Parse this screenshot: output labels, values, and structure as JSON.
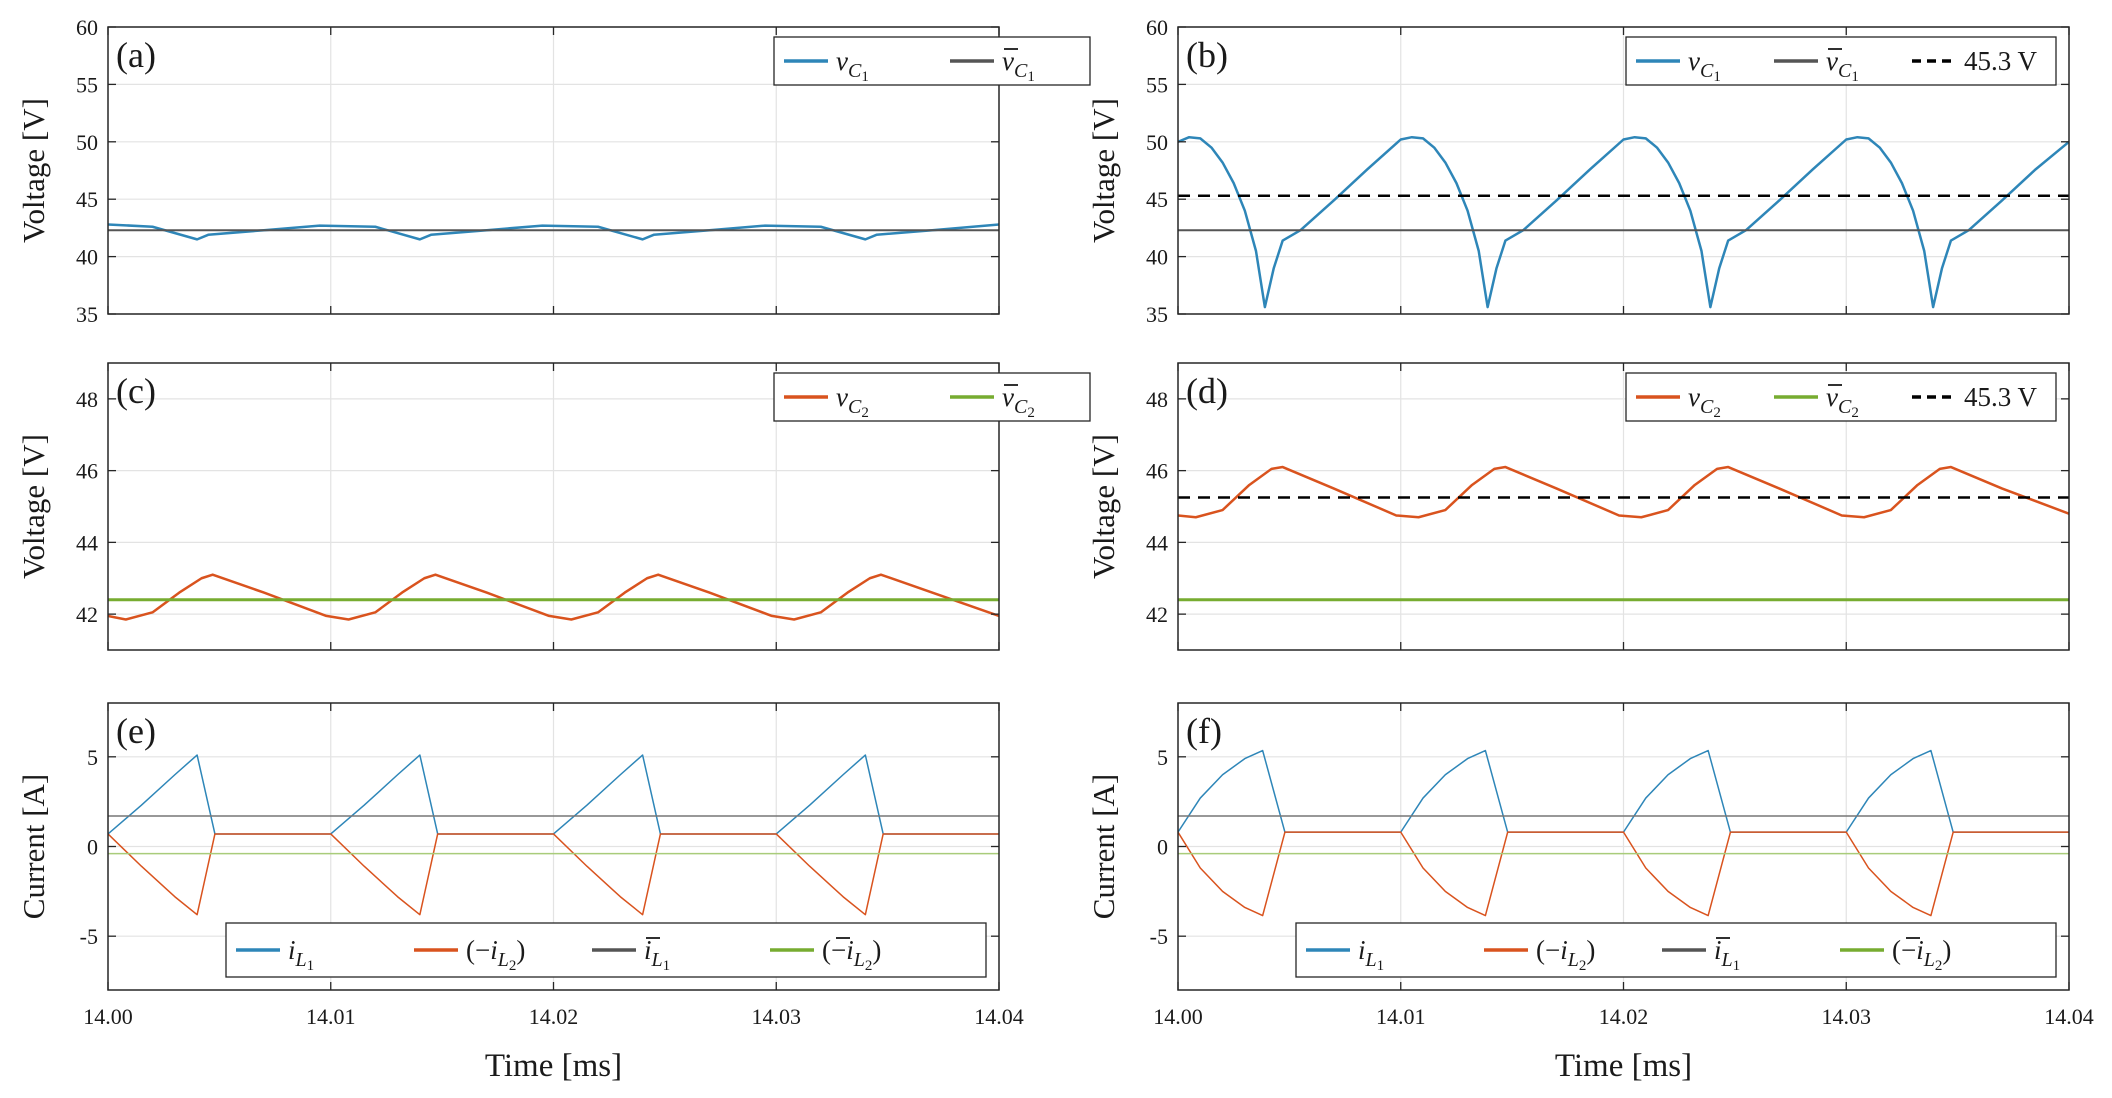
{
  "chart_data": [
    {
      "id": "a",
      "type": "line",
      "panel_label": "(a)",
      "ylabel": "Voltage [V]",
      "xlabel": "",
      "xlim": [
        14.0,
        14.04
      ],
      "ylim": [
        35,
        60
      ],
      "xticks": [
        14.0,
        14.01,
        14.02,
        14.03,
        14.04
      ],
      "xtick_labels": [
        "",
        "",
        "",
        "",
        ""
      ],
      "yticks": [
        35,
        40,
        45,
        50,
        55,
        60
      ],
      "ytick_labels": [
        "35",
        "40",
        "45",
        "50",
        "55",
        "60"
      ],
      "grid": true,
      "legend_position": "top-right",
      "series": [
        {
          "name": "v_C1",
          "color": "#2E86B8",
          "width": 2.5,
          "x": [
            14.0,
            14.002,
            14.004,
            14.0045,
            14.007,
            14.0095,
            14.012,
            14.014,
            14.0145,
            14.017,
            14.0195,
            14.022,
            14.024,
            14.0245,
            14.027,
            14.0295,
            14.032,
            14.034,
            14.0345,
            14.037,
            14.04
          ],
          "y": [
            42.8,
            42.6,
            41.5,
            41.9,
            42.3,
            42.7,
            42.6,
            41.5,
            41.9,
            42.3,
            42.7,
            42.6,
            41.5,
            41.9,
            42.3,
            42.7,
            42.6,
            41.5,
            41.9,
            42.3,
            42.8
          ]
        },
        {
          "name": "v̄_C1",
          "color": "#555555",
          "width": 2,
          "x": [
            14.0,
            14.04
          ],
          "y": [
            42.3,
            42.3
          ]
        }
      ],
      "legend": [
        {
          "label": "v",
          "sub": "C",
          "subsub": "1",
          "bar": false,
          "color": "#2E86B8"
        },
        {
          "label": "v",
          "sub": "C",
          "subsub": "1",
          "bar": true,
          "color": "#555555"
        }
      ]
    },
    {
      "id": "b",
      "type": "line",
      "panel_label": "(b)",
      "ylabel": "Voltage [V]",
      "xlabel": "",
      "xlim": [
        14.0,
        14.04
      ],
      "ylim": [
        35,
        60
      ],
      "xticks": [
        14.0,
        14.01,
        14.02,
        14.03,
        14.04
      ],
      "xtick_labels": [
        "",
        "",
        "",
        "",
        ""
      ],
      "yticks": [
        35,
        40,
        45,
        50,
        55,
        60
      ],
      "ytick_labels": [
        "35",
        "40",
        "45",
        "50",
        "55",
        "60"
      ],
      "grid": true,
      "legend_position": "top-right",
      "series": [
        {
          "name": "v_C1",
          "color": "#2E86B8",
          "width": 2.5,
          "x": [
            14.0,
            14.0005,
            14.001,
            14.0015,
            14.002,
            14.0025,
            14.003,
            14.0035,
            14.0039,
            14.0043,
            14.0047,
            14.0055,
            14.007,
            14.0085,
            14.01,
            14.0105,
            14.011,
            14.0115,
            14.012,
            14.0125,
            14.013,
            14.0135,
            14.0139,
            14.0143,
            14.0147,
            14.0155,
            14.017,
            14.0185,
            14.02,
            14.0205,
            14.021,
            14.0215,
            14.022,
            14.0225,
            14.023,
            14.0235,
            14.0239,
            14.0243,
            14.0247,
            14.0255,
            14.027,
            14.0285,
            14.03,
            14.0305,
            14.031,
            14.0315,
            14.032,
            14.0325,
            14.033,
            14.0335,
            14.0339,
            14.0343,
            14.0347,
            14.0355,
            14.037,
            14.0385,
            14.04
          ],
          "y": [
            50.0,
            50.4,
            50.3,
            49.5,
            48.2,
            46.4,
            44.0,
            40.5,
            35.6,
            39.0,
            41.4,
            42.3,
            44.9,
            47.6,
            50.2,
            50.4,
            50.3,
            49.5,
            48.2,
            46.4,
            44.0,
            40.5,
            35.6,
            39.0,
            41.4,
            42.3,
            44.9,
            47.6,
            50.2,
            50.4,
            50.3,
            49.5,
            48.2,
            46.4,
            44.0,
            40.5,
            35.6,
            39.0,
            41.4,
            42.3,
            44.9,
            47.6,
            50.2,
            50.4,
            50.3,
            49.5,
            48.2,
            46.4,
            44.0,
            40.5,
            35.6,
            39.0,
            41.4,
            42.3,
            44.9,
            47.6,
            50.0
          ]
        },
        {
          "name": "v̄_C1",
          "color": "#555555",
          "width": 2,
          "x": [
            14.0,
            14.04
          ],
          "y": [
            42.3,
            42.3
          ]
        },
        {
          "name": "45.3 V",
          "color": "#000000",
          "width": 2.5,
          "dash": true,
          "x": [
            14.0,
            14.04
          ],
          "y": [
            45.3,
            45.3
          ]
        }
      ],
      "legend": [
        {
          "label": "v",
          "sub": "C",
          "subsub": "1",
          "bar": false,
          "color": "#2E86B8"
        },
        {
          "label": "v",
          "sub": "C",
          "subsub": "1",
          "bar": true,
          "color": "#555555"
        },
        {
          "label": "45.3 V",
          "plain": true,
          "dash": true,
          "color": "#000000"
        }
      ]
    },
    {
      "id": "c",
      "type": "line",
      "panel_label": "(c)",
      "ylabel": "Voltage [V]",
      "xlabel": "",
      "xlim": [
        14.0,
        14.04
      ],
      "ylim": [
        41,
        49
      ],
      "xticks": [
        14.0,
        14.01,
        14.02,
        14.03,
        14.04
      ],
      "xtick_labels": [
        "",
        "",
        "",
        "",
        ""
      ],
      "yticks": [
        42,
        44,
        46,
        48
      ],
      "ytick_labels": [
        "42",
        "44",
        "46",
        "48"
      ],
      "grid": true,
      "legend_position": "top-right",
      "series": [
        {
          "name": "v_C2",
          "color": "#D9531E",
          "width": 2.5,
          "x": [
            14.0,
            14.0008,
            14.002,
            14.0032,
            14.0042,
            14.0047,
            14.007,
            14.0098,
            14.0108,
            14.012,
            14.0132,
            14.0142,
            14.0147,
            14.017,
            14.0198,
            14.0208,
            14.022,
            14.0232,
            14.0242,
            14.0247,
            14.027,
            14.0298,
            14.0308,
            14.032,
            14.0332,
            14.0342,
            14.0347,
            14.037,
            14.04
          ],
          "y": [
            41.95,
            41.85,
            42.05,
            42.6,
            43.0,
            43.1,
            42.6,
            41.95,
            41.85,
            42.05,
            42.6,
            43.0,
            43.1,
            42.6,
            41.95,
            41.85,
            42.05,
            42.6,
            43.0,
            43.1,
            42.6,
            41.95,
            41.85,
            42.05,
            42.6,
            43.0,
            43.1,
            42.6,
            41.95
          ]
        },
        {
          "name": "v̄_C2",
          "color": "#77AC30",
          "width": 3,
          "x": [
            14.0,
            14.04
          ],
          "y": [
            42.4,
            42.4
          ]
        }
      ],
      "legend": [
        {
          "label": "v",
          "sub": "C",
          "subsub": "2",
          "bar": false,
          "color": "#D9531E"
        },
        {
          "label": "v",
          "sub": "C",
          "subsub": "2",
          "bar": true,
          "color": "#77AC30"
        }
      ]
    },
    {
      "id": "d",
      "type": "line",
      "panel_label": "(d)",
      "ylabel": "Voltage [V]",
      "xlabel": "",
      "xlim": [
        14.0,
        14.04
      ],
      "ylim": [
        41,
        49
      ],
      "xticks": [
        14.0,
        14.01,
        14.02,
        14.03,
        14.04
      ],
      "xtick_labels": [
        "",
        "",
        "",
        "",
        ""
      ],
      "yticks": [
        42,
        44,
        46,
        48
      ],
      "ytick_labels": [
        "42",
        "44",
        "46",
        "48"
      ],
      "grid": true,
      "legend_position": "top-right",
      "series": [
        {
          "name": "v_C2",
          "color": "#D9531E",
          "width": 2.5,
          "x": [
            14.0,
            14.0008,
            14.002,
            14.0032,
            14.0042,
            14.0047,
            14.007,
            14.0098,
            14.0108,
            14.012,
            14.0132,
            14.0142,
            14.0147,
            14.017,
            14.0198,
            14.0208,
            14.022,
            14.0232,
            14.0242,
            14.0247,
            14.027,
            14.0298,
            14.0308,
            14.032,
            14.0332,
            14.0342,
            14.0347,
            14.037,
            14.04
          ],
          "y": [
            44.75,
            44.7,
            44.9,
            45.6,
            46.05,
            46.1,
            45.5,
            44.75,
            44.7,
            44.9,
            45.6,
            46.05,
            46.1,
            45.5,
            44.75,
            44.7,
            44.9,
            45.6,
            46.05,
            46.1,
            45.5,
            44.75,
            44.7,
            44.9,
            45.6,
            46.05,
            46.1,
            45.5,
            44.8
          ]
        },
        {
          "name": "v̄_C2",
          "color": "#77AC30",
          "width": 3,
          "x": [
            14.0,
            14.04
          ],
          "y": [
            42.4,
            42.4
          ]
        },
        {
          "name": "45.3 V",
          "color": "#000000",
          "width": 2.5,
          "dash": true,
          "x": [
            14.0,
            14.04
          ],
          "y": [
            45.25,
            45.25
          ]
        }
      ],
      "legend": [
        {
          "label": "v",
          "sub": "C",
          "subsub": "2",
          "bar": false,
          "color": "#D9531E"
        },
        {
          "label": "v",
          "sub": "C",
          "subsub": "2",
          "bar": true,
          "color": "#77AC30"
        },
        {
          "label": "45.3 V",
          "plain": true,
          "dash": true,
          "color": "#000000"
        }
      ]
    },
    {
      "id": "e",
      "type": "line",
      "panel_label": "(e)",
      "ylabel": "Current [A]",
      "xlabel": "Time [ms]",
      "xlim": [
        14.0,
        14.04
      ],
      "ylim": [
        -8,
        8
      ],
      "xticks": [
        14.0,
        14.01,
        14.02,
        14.03,
        14.04
      ],
      "xtick_labels": [
        "14.00",
        "14.01",
        "14.02",
        "14.03",
        "14.04"
      ],
      "yticks": [
        -5,
        0,
        5
      ],
      "ytick_labels": [
        "-5",
        "0",
        "5"
      ],
      "grid": true,
      "legend_position": "bottom",
      "series": [
        {
          "name": "i_L1",
          "color": "#2E86B8",
          "width": 1.5,
          "x": [
            14.0,
            14.0015,
            14.003,
            14.004,
            14.0048,
            14.01,
            14.0115,
            14.013,
            14.014,
            14.0148,
            14.02,
            14.0215,
            14.023,
            14.024,
            14.0248,
            14.03,
            14.0315,
            14.033,
            14.034,
            14.0348,
            14.04
          ],
          "y": [
            0.7,
            2.3,
            4.0,
            5.1,
            0.7,
            0.7,
            2.3,
            4.0,
            5.1,
            0.7,
            0.7,
            2.3,
            4.0,
            5.1,
            0.7,
            0.7,
            2.3,
            4.0,
            5.1,
            0.7,
            0.7
          ]
        },
        {
          "name": "(-i_L2)",
          "color": "#D9531E",
          "width": 1.5,
          "x": [
            14.0,
            14.0015,
            14.003,
            14.004,
            14.0048,
            14.01,
            14.0115,
            14.013,
            14.014,
            14.0148,
            14.02,
            14.0215,
            14.023,
            14.024,
            14.0248,
            14.03,
            14.0315,
            14.033,
            14.034,
            14.0348,
            14.04
          ],
          "y": [
            0.7,
            -1.1,
            -2.8,
            -3.8,
            0.7,
            0.7,
            -1.1,
            -2.8,
            -3.8,
            0.7,
            0.7,
            -1.1,
            -2.8,
            -3.8,
            0.7,
            0.7,
            -1.1,
            -2.8,
            -3.8,
            0.7,
            0.7
          ]
        },
        {
          "name": "ī_L1",
          "color": "#777777",
          "width": 1.5,
          "x": [
            14.0,
            14.04
          ],
          "y": [
            1.7,
            1.7
          ]
        },
        {
          "name": "(-ī_L2)",
          "color": "#A9CC7A",
          "width": 1.5,
          "x": [
            14.0,
            14.04
          ],
          "y": [
            -0.4,
            -0.4
          ]
        }
      ],
      "legend": [
        {
          "label": "i",
          "sub": "L",
          "subsub": "1",
          "bar": false,
          "color": "#2E86B8"
        },
        {
          "label": "i",
          "sub": "L",
          "subsub": "2",
          "bar": false,
          "neg": true,
          "color": "#D9531E"
        },
        {
          "label": "i",
          "sub": "L",
          "subsub": "1",
          "bar": true,
          "color": "#555555"
        },
        {
          "label": "i",
          "sub": "L",
          "subsub": "2",
          "bar": true,
          "neg": true,
          "color": "#77AC30"
        }
      ]
    },
    {
      "id": "f",
      "type": "line",
      "panel_label": "(f)",
      "ylabel": "Current [A]",
      "xlabel": "Time [ms]",
      "xlim": [
        14.0,
        14.04
      ],
      "ylim": [
        -8,
        8
      ],
      "xticks": [
        14.0,
        14.01,
        14.02,
        14.03,
        14.04
      ],
      "xtick_labels": [
        "14.00",
        "14.01",
        "14.02",
        "14.03",
        "14.04"
      ],
      "yticks": [
        -5,
        0,
        5
      ],
      "ytick_labels": [
        "-5",
        "0",
        "5"
      ],
      "grid": true,
      "legend_position": "bottom",
      "series": [
        {
          "name": "i_L1",
          "color": "#2E86B8",
          "width": 1.5,
          "x": [
            14.0,
            14.001,
            14.002,
            14.003,
            14.0038,
            14.0048,
            14.01,
            14.011,
            14.012,
            14.013,
            14.0138,
            14.0148,
            14.02,
            14.021,
            14.022,
            14.023,
            14.0238,
            14.0248,
            14.03,
            14.031,
            14.032,
            14.033,
            14.0338,
            14.0348,
            14.04
          ],
          "y": [
            0.8,
            2.7,
            4.0,
            4.9,
            5.35,
            0.8,
            0.8,
            2.7,
            4.0,
            4.9,
            5.35,
            0.8,
            0.8,
            2.7,
            4.0,
            4.9,
            5.35,
            0.8,
            0.8,
            2.7,
            4.0,
            4.9,
            5.35,
            0.8,
            0.8
          ]
        },
        {
          "name": "(-i_L2)",
          "color": "#D9531E",
          "width": 1.5,
          "x": [
            14.0,
            14.001,
            14.002,
            14.003,
            14.0038,
            14.0048,
            14.01,
            14.011,
            14.012,
            14.013,
            14.0138,
            14.0148,
            14.02,
            14.021,
            14.022,
            14.023,
            14.0238,
            14.0248,
            14.03,
            14.031,
            14.032,
            14.033,
            14.0338,
            14.0348,
            14.04
          ],
          "y": [
            0.8,
            -1.2,
            -2.5,
            -3.4,
            -3.85,
            0.8,
            0.8,
            -1.2,
            -2.5,
            -3.4,
            -3.85,
            0.8,
            0.8,
            -1.2,
            -2.5,
            -3.4,
            -3.85,
            0.8,
            0.8,
            -1.2,
            -2.5,
            -3.4,
            -3.85,
            0.8,
            0.8
          ]
        },
        {
          "name": "ī_L1",
          "color": "#777777",
          "width": 1.5,
          "x": [
            14.0,
            14.04
          ],
          "y": [
            1.7,
            1.7
          ]
        },
        {
          "name": "(-ī_L2)",
          "color": "#A9CC7A",
          "width": 1.5,
          "x": [
            14.0,
            14.04
          ],
          "y": [
            -0.4,
            -0.4
          ]
        }
      ],
      "legend": [
        {
          "label": "i",
          "sub": "L",
          "subsub": "1",
          "bar": false,
          "color": "#2E86B8"
        },
        {
          "label": "i",
          "sub": "L",
          "subsub": "2",
          "bar": false,
          "neg": true,
          "color": "#D9531E"
        },
        {
          "label": "i",
          "sub": "L",
          "subsub": "1",
          "bar": true,
          "color": "#555555"
        },
        {
          "label": "i",
          "sub": "L",
          "subsub": "2",
          "bar": true,
          "neg": true,
          "color": "#77AC30"
        }
      ]
    }
  ]
}
